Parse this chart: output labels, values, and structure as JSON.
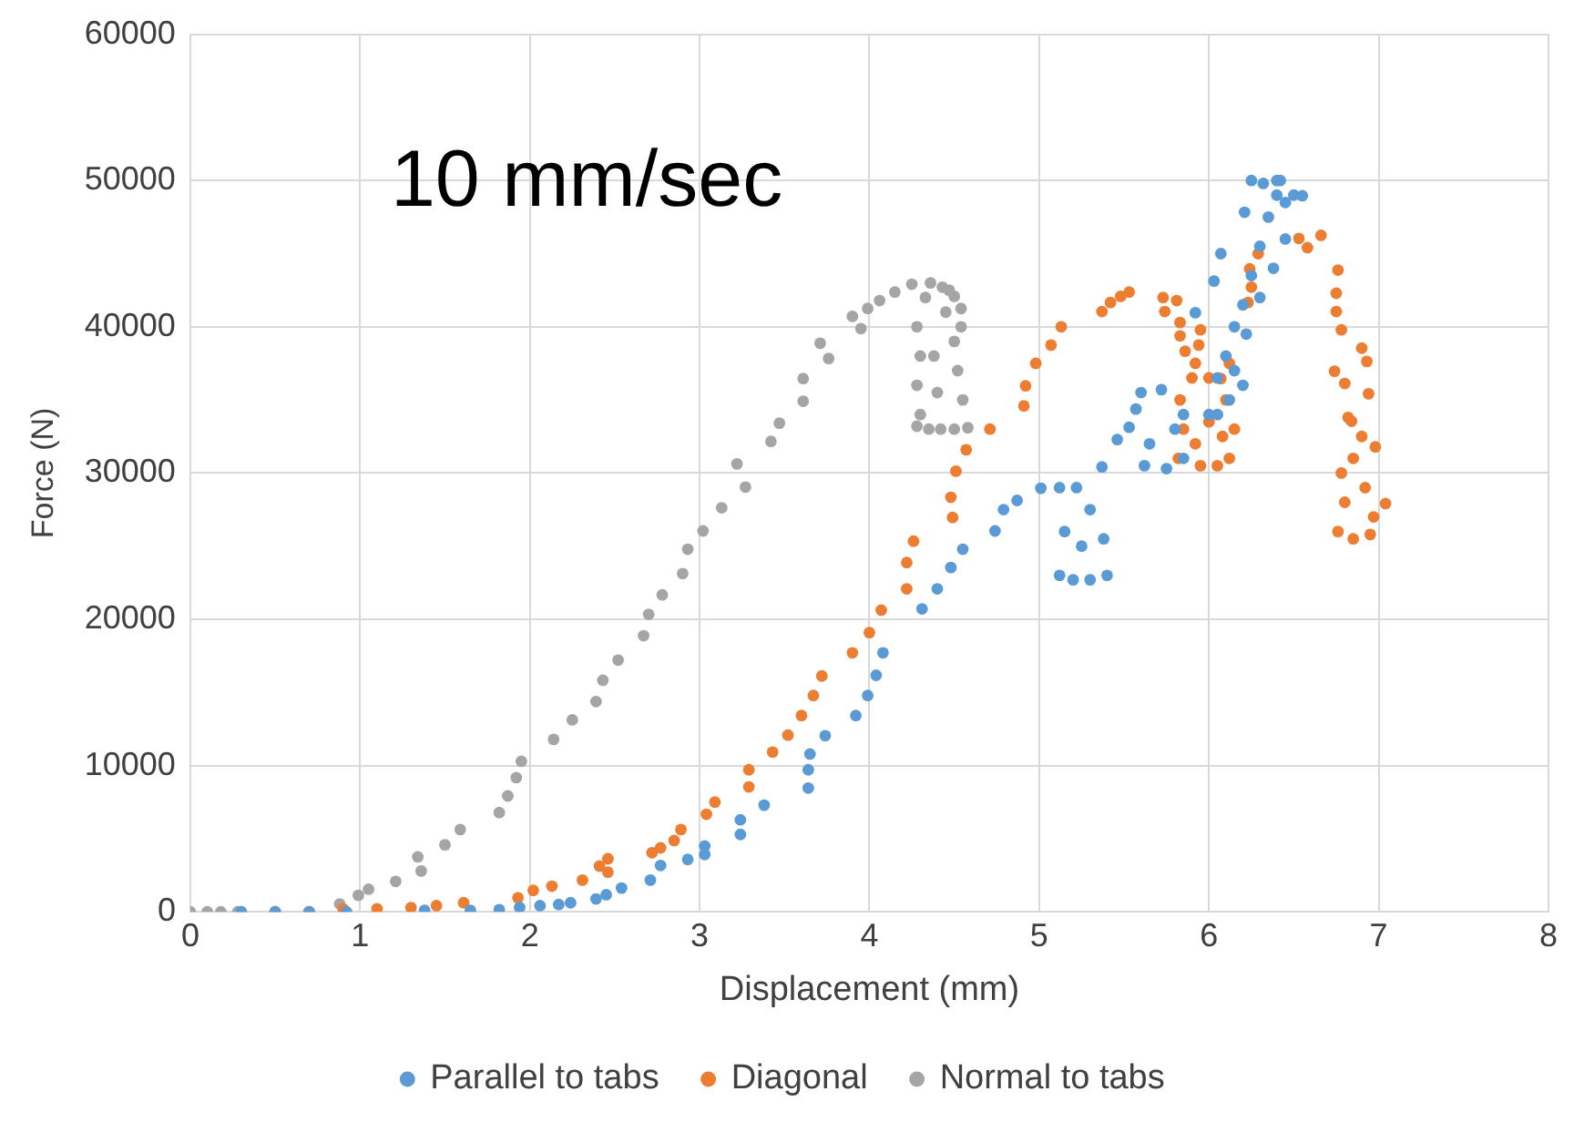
{
  "chart_data": {
    "type": "scatter",
    "xlabel": "Displacement (mm)",
    "ylabel": "Force (N)",
    "annotations": [
      "10 mm/sec"
    ],
    "xlim": [
      0,
      8
    ],
    "xticks": [
      0,
      1,
      2,
      3,
      4,
      5,
      6,
      7,
      8
    ],
    "ylim": [
      0,
      60000
    ],
    "yticks": [
      0,
      10000,
      20000,
      30000,
      40000,
      50000,
      60000
    ],
    "grid": true,
    "legend": "bottom",
    "marker": "circle",
    "series": [
      {
        "name": "Parallel to tabs",
        "color": "#5b9bd5",
        "x": [
          0.3,
          0.5,
          0.7,
          0.92,
          1.38,
          1.65,
          1.82,
          1.94,
          2.06,
          2.17,
          2.24,
          2.39,
          2.45,
          2.54,
          2.71,
          2.77,
          2.93,
          3.03,
          3.03,
          3.24,
          3.24,
          3.38,
          3.64,
          3.64,
          3.65,
          3.74,
          3.92,
          3.99,
          4.04,
          4.08,
          4.31,
          4.4,
          4.48,
          4.55,
          4.74,
          4.79,
          4.87,
          5.01,
          5.12,
          5.15,
          5.12,
          5.2,
          5.3,
          5.4,
          5.38,
          5.3,
          5.22,
          5.25,
          5.37,
          5.46,
          5.53,
          5.57,
          5.6,
          5.65,
          5.62,
          5.75,
          5.85,
          5.85,
          5.72,
          5.8,
          5.92,
          6.03,
          6.07,
          6.21,
          6.25,
          6.0,
          6.05,
          6.1,
          6.15,
          6.2,
          6.25,
          6.3,
          6.35,
          6.4,
          6.32,
          6.45,
          6.45,
          6.38,
          6.3,
          6.22,
          6.15,
          6.05,
          6.2,
          6.12,
          6.5,
          6.42,
          6.55,
          6.4
        ],
        "values": [
          0,
          0,
          0,
          0,
          100,
          100,
          150,
          300,
          420,
          500,
          620,
          880,
          1170,
          1625,
          2170,
          3170,
          3580,
          3920,
          4500,
          5290,
          6290,
          7290,
          8460,
          9710,
          10790,
          12040,
          13420,
          14790,
          16170,
          17710,
          20710,
          22080,
          23540,
          24790,
          26040,
          27500,
          28125,
          28960,
          29000,
          26000,
          23000,
          22700,
          22700,
          23000,
          25500,
          27500,
          29000,
          25000,
          30420,
          32290,
          33125,
          34375,
          35500,
          32000,
          30500,
          30300,
          31000,
          34000,
          35700,
          33000,
          40960,
          43125,
          45000,
          47830,
          50000,
          34000,
          36500,
          38000,
          40000,
          41500,
          43500,
          45500,
          47500,
          49000,
          49800,
          48500,
          46000,
          44000,
          42000,
          39500,
          37000,
          34000,
          36000,
          35000,
          49000,
          50000,
          48960,
          50000
        ]
      },
      {
        "name": "Diagonal",
        "color": "#ed7d31",
        "x": [
          0.3,
          0.5,
          0.7,
          0.9,
          1.1,
          1.3,
          1.45,
          1.61,
          1.93,
          2.02,
          2.13,
          2.31,
          2.41,
          2.46,
          2.46,
          2.72,
          2.77,
          2.85,
          2.89,
          3.04,
          3.09,
          3.29,
          3.29,
          3.43,
          3.52,
          3.6,
          3.67,
          3.72,
          3.9,
          4.0,
          4.07,
          4.22,
          4.22,
          4.26,
          4.49,
          4.48,
          4.51,
          4.57,
          4.71,
          4.91,
          4.92,
          4.98,
          5.07,
          5.13,
          5.37,
          5.42,
          5.48,
          5.53,
          5.73,
          5.81,
          5.74,
          5.83,
          5.95,
          5.83,
          5.86,
          5.94,
          5.92,
          5.82,
          5.85,
          5.83,
          5.9,
          5.95,
          6.05,
          6.12,
          6.15,
          6.1,
          6.0,
          6.0,
          5.92,
          6.08,
          6.07,
          6.12,
          6.23,
          6.25,
          6.24,
          6.29,
          6.53,
          6.58,
          6.66,
          6.76,
          6.75,
          6.75,
          6.78,
          6.9,
          6.93,
          6.74,
          6.8,
          6.94,
          6.84,
          6.98,
          7.04,
          6.76,
          6.85,
          6.95,
          6.8,
          6.92,
          6.85,
          6.78,
          6.9,
          6.82,
          6.97
        ],
        "values": [
          0,
          0,
          0,
          200,
          200,
          290,
          420,
          625,
          960,
          1460,
          1750,
          2170,
          3125,
          3625,
          2710,
          4040,
          4375,
          4875,
          5625,
          6670,
          7500,
          8540,
          9710,
          10920,
          12080,
          13420,
          14790,
          16125,
          17710,
          19090,
          20625,
          22080,
          23875,
          25340,
          26960,
          28340,
          30125,
          31590,
          33000,
          34590,
          35960,
          37500,
          38750,
          40000,
          41040,
          41660,
          42080,
          42375,
          42000,
          41790,
          41040,
          40290,
          39790,
          39375,
          38330,
          38750,
          37500,
          31000,
          33000,
          35000,
          36500,
          30500,
          30500,
          31000,
          33000,
          35000,
          36500,
          33500,
          32000,
          32500,
          36460,
          37500,
          41660,
          42710,
          43960,
          45000,
          46040,
          45410,
          46250,
          43875,
          42290,
          41040,
          39790,
          38540,
          37630,
          36960,
          36125,
          35420,
          33540,
          31790,
          27910,
          26000,
          25500,
          25800,
          28000,
          29000,
          31000,
          30000,
          32500,
          33800,
          27000
        ]
      },
      {
        "name": "Normal to tabs",
        "color": "#a5a5a5",
        "x": [
          0,
          0.1,
          0.18,
          0.28,
          0.5,
          0.7,
          0.88,
          0.99,
          1.05,
          1.21,
          1.34,
          1.36,
          1.5,
          1.59,
          1.82,
          1.87,
          1.92,
          1.95,
          2.14,
          2.25,
          2.39,
          2.43,
          2.52,
          2.67,
          2.7,
          2.78,
          2.9,
          2.93,
          3.02,
          3.13,
          3.22,
          3.27,
          3.42,
          3.47,
          3.61,
          3.61,
          3.71,
          3.76,
          3.9,
          3.95,
          3.99,
          4.06,
          4.15,
          4.25,
          4.36,
          4.43,
          4.5,
          4.54,
          4.28,
          4.3,
          4.28,
          4.3,
          4.28,
          4.35,
          4.42,
          4.5,
          4.58,
          4.55,
          4.52,
          4.5,
          4.45,
          4.38,
          4.4,
          4.33,
          4.47,
          4.54
        ],
        "values": [
          0,
          0,
          0,
          0,
          0,
          0,
          540,
          1125,
          1540,
          2080,
          3750,
          2790,
          4580,
          5625,
          6790,
          7920,
          9170,
          10290,
          11790,
          13125,
          14375,
          15830,
          17210,
          18875,
          20340,
          21670,
          23125,
          24790,
          26040,
          27625,
          30625,
          29040,
          32160,
          33410,
          34910,
          36460,
          38875,
          37830,
          40710,
          39875,
          41250,
          41790,
          42375,
          42910,
          43000,
          42710,
          42080,
          41250,
          40000,
          38000,
          36000,
          34000,
          33200,
          33000,
          33000,
          33000,
          33100,
          35000,
          37000,
          39000,
          41000,
          38000,
          35500,
          42000,
          42500,
          40000
        ]
      }
    ]
  }
}
